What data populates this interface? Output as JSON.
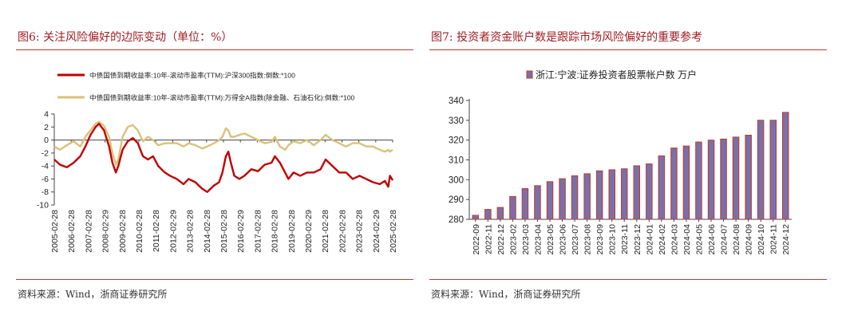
{
  "left": {
    "title": "图6:  关注风险偏好的边际变动（单位：%）",
    "source": "资料来源：Wind，浙商证券研究所",
    "chart_data": {
      "type": "line",
      "yticks": [
        4,
        2,
        0,
        -2,
        -4,
        -6,
        -8,
        -10
      ],
      "ylim": [
        -10,
        4
      ],
      "xlim": [
        2005.16,
        2025.16
      ],
      "xticks": [
        "2005-02-28",
        "2006-02-28",
        "2007-02-28",
        "2008-02-29",
        "2009-02-28",
        "2010-02-28",
        "2011-02-28",
        "2012-02-29",
        "2013-02-28",
        "2014-02-28",
        "2015-02-28",
        "2016-02-29",
        "2017-02-28",
        "2018-02-28",
        "2019-02-28",
        "2020-02-29",
        "2021-02-28",
        "2022-02-28",
        "2023-02-28",
        "2024-02-29",
        "2025-02-28"
      ],
      "series": [
        {
          "name": "中债国债到期收益率:10年-滚动市盈率(TTM):沪深300指数:倒数:*100",
          "color": "#c00000",
          "x": [
            2005.16,
            2005.5,
            2005.9,
            2006.3,
            2006.7,
            2007.0,
            2007.3,
            2007.6,
            2007.8,
            2008.1,
            2008.4,
            2008.6,
            2008.8,
            2008.95,
            2009.2,
            2009.5,
            2009.8,
            2010.1,
            2010.4,
            2010.7,
            2011.0,
            2011.3,
            2011.7,
            2012.0,
            2012.4,
            2012.8,
            2013.1,
            2013.5,
            2013.9,
            2014.2,
            2014.6,
            2014.9,
            2015.1,
            2015.3,
            2015.45,
            2015.6,
            2015.8,
            2016.1,
            2016.4,
            2016.8,
            2017.2,
            2017.6,
            2018.0,
            2018.2,
            2018.5,
            2018.8,
            2019.0,
            2019.3,
            2019.7,
            2020.1,
            2020.5,
            2020.9,
            2021.2,
            2021.6,
            2022.0,
            2022.4,
            2022.8,
            2023.2,
            2023.6,
            2024.0,
            2024.4,
            2024.7,
            2024.9,
            2025.0,
            2025.16
          ],
          "y": [
            -3.0,
            -3.8,
            -4.2,
            -3.5,
            -2.5,
            -1.0,
            0.8,
            2.0,
            2.5,
            1.5,
            -1.0,
            -3.5,
            -5.0,
            -4.0,
            -1.5,
            -0.2,
            0.3,
            -0.5,
            -2.5,
            -3.0,
            -2.5,
            -4.0,
            -5.0,
            -5.5,
            -6.0,
            -6.8,
            -6.0,
            -6.5,
            -7.5,
            -8.0,
            -7.0,
            -6.5,
            -5.0,
            -2.5,
            -1.8,
            -3.5,
            -5.5,
            -6.0,
            -5.5,
            -4.5,
            -4.8,
            -3.8,
            -3.5,
            -2.5,
            -3.5,
            -5.0,
            -6.0,
            -5.0,
            -5.5,
            -5.0,
            -5.0,
            -4.5,
            -3.0,
            -4.0,
            -5.0,
            -5.0,
            -6.0,
            -5.5,
            -6.0,
            -6.5,
            -6.8,
            -6.3,
            -7.2,
            -5.5,
            -6.2
          ]
        },
        {
          "name": "中债国债到期收益率:10年-滚动市盈率(TTM):万得全A指数(除金融、石油石化):倒数:*100",
          "color": "#d8c27a",
          "x": [
            2005.16,
            2005.5,
            2005.9,
            2006.3,
            2006.7,
            2007.0,
            2007.3,
            2007.6,
            2007.8,
            2008.1,
            2008.4,
            2008.6,
            2008.8,
            2008.95,
            2009.2,
            2009.5,
            2009.8,
            2010.1,
            2010.4,
            2010.7,
            2011.0,
            2011.3,
            2011.7,
            2012.0,
            2012.4,
            2012.8,
            2013.1,
            2013.5,
            2013.9,
            2014.2,
            2014.6,
            2014.9,
            2015.1,
            2015.3,
            2015.45,
            2015.6,
            2015.8,
            2016.1,
            2016.4,
            2016.8,
            2017.2,
            2017.6,
            2018.0,
            2018.2,
            2018.5,
            2018.8,
            2019.0,
            2019.3,
            2019.7,
            2020.1,
            2020.5,
            2020.9,
            2021.2,
            2021.6,
            2022.0,
            2022.4,
            2022.8,
            2023.2,
            2023.6,
            2024.0,
            2024.4,
            2024.7,
            2024.9,
            2025.0,
            2025.16
          ],
          "y": [
            -1.0,
            -1.5,
            -0.8,
            -0.2,
            -1.0,
            0.5,
            1.5,
            2.5,
            2.8,
            2.2,
            0.5,
            -2.0,
            -3.8,
            -3.0,
            0.5,
            2.0,
            2.3,
            1.5,
            -0.2,
            0.5,
            0.0,
            -0.8,
            -0.5,
            -0.5,
            -0.5,
            -1.0,
            -0.5,
            -0.8,
            -1.3,
            -1.0,
            -0.5,
            0.0,
            0.5,
            1.8,
            1.5,
            0.5,
            0.5,
            0.8,
            1.0,
            0.5,
            0.0,
            -0.5,
            -0.3,
            0.5,
            -1.0,
            -1.5,
            -0.8,
            -0.2,
            -0.5,
            0.0,
            -0.8,
            0.0,
            0.8,
            0.0,
            -0.5,
            -1.0,
            -0.5,
            -0.5,
            -1.0,
            -1.0,
            -1.5,
            -1.8,
            -1.5,
            -1.8,
            -1.5
          ]
        }
      ]
    }
  },
  "right": {
    "title": "图7:  投资者资金账户数是跟踪市场风险偏好的重要参考",
    "source": "资料来源：Wind，浙商证券研究所",
    "chart_data": {
      "type": "bar",
      "series_name": "浙江:宁波:证券投资者股票帐户数 万户",
      "bar_color": "#7b6fa8",
      "edge_color": "#c0392b",
      "ylim": [
        280,
        340
      ],
      "yticks": [
        340,
        330,
        320,
        310,
        300,
        290,
        280
      ],
      "categories": [
        "2022-09",
        "2022-11",
        "2022-12",
        "2023-02",
        "2023-03",
        "2023-04",
        "2023-05",
        "2023-06",
        "2023-07",
        "2023-08",
        "2023-09",
        "2023-10",
        "2023-11",
        "2023-12",
        "2024-01",
        "2024-02",
        "2024-03",
        "2024-04",
        "2024-05",
        "2024-06",
        "2024-07",
        "2024-08",
        "2024-09",
        "2024-10",
        "2024-11",
        "2024-12"
      ],
      "values": [
        282,
        285,
        286,
        291.5,
        295.5,
        297,
        299,
        300.5,
        302,
        303,
        304.5,
        305,
        305.5,
        307,
        308,
        312,
        316,
        317,
        319,
        320,
        320.5,
        321.5,
        322.5,
        330,
        330,
        334
      ]
    }
  }
}
